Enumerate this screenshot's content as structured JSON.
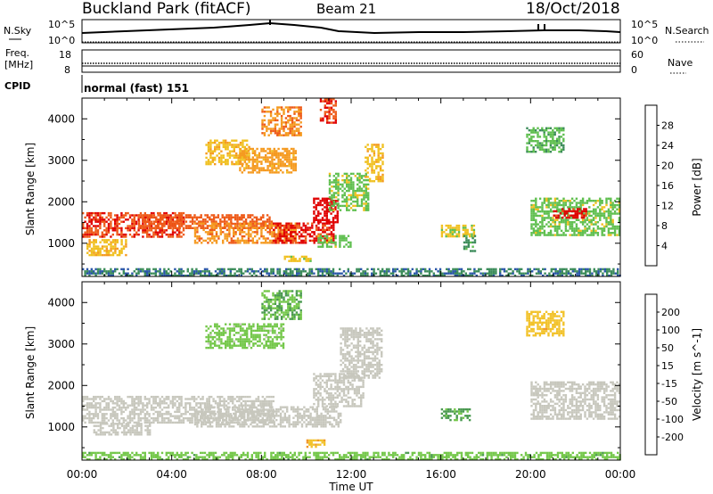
{
  "header": {
    "station": "Buckland Park (fitACF)",
    "beam": "Beam 21",
    "date": "18/Oct/2018"
  },
  "noise_panel": {
    "left_label": "N.Sky",
    "right_label": "N.Search",
    "left_ticks": [
      "10^5",
      "10^0"
    ],
    "right_ticks": [
      "10^5",
      "10^0"
    ]
  },
  "freq_panel": {
    "left_label_1": "Freq.",
    "left_label_2": "[MHz]",
    "left_ticks": [
      "18",
      "8"
    ],
    "right_label": "Nave",
    "right_ticks": [
      "60",
      "0"
    ]
  },
  "cpid_panel": {
    "label": "CPID",
    "text": "normal (fast) 151"
  },
  "power_panel": {
    "ylabel": "Slant Range [km]",
    "yticks": [
      "4000",
      "3000",
      "2000",
      "1000"
    ],
    "colorbar_label": "Power [dB]",
    "colorbar_ticks": [
      "28",
      "24",
      "20",
      "16",
      "12",
      "8",
      "4"
    ]
  },
  "velocity_panel": {
    "ylabel": "Slant Range [km]",
    "yticks": [
      "4000",
      "3000",
      "2000",
      "1000"
    ],
    "colorbar_label": "Velocity [m s^-1]",
    "colorbar_ticks": [
      "200",
      "100",
      "50",
      "15",
      "-15",
      "-50",
      "-100",
      "-200"
    ]
  },
  "x_axis": {
    "ticks": [
      "00:00",
      "04:00",
      "08:00",
      "12:00",
      "16:00",
      "20:00",
      "00:00"
    ],
    "label": "Time UT"
  },
  "colors": {
    "power_scale": [
      "#0a20e0",
      "#2a56a8",
      "#3c8c5a",
      "#5fbf4f",
      "#f0c020",
      "#f59a20",
      "#ee5a18",
      "#e00000"
    ],
    "velocity_scale": [
      "#1430d0",
      "#2f5fa8",
      "#4a9950",
      "#74c74a",
      "#c7c7bd",
      "#f2c22a",
      "#f19528",
      "#ea5a1b",
      "#e00000"
    ]
  },
  "chart_data": [
    {
      "type": "heatmap",
      "panel": "Power",
      "x_unit": "Time UT (hours)",
      "xlim": [
        0,
        24
      ],
      "y_unit": "Slant Range (km)",
      "ylim": [
        200,
        4500
      ],
      "value_range": [
        0,
        30
      ],
      "value_unit": "dB",
      "regions": [
        {
          "t0": 0.0,
          "t1": 4.5,
          "r0": 1150,
          "r1": 1750,
          "value": 26
        },
        {
          "t0": 0.2,
          "t1": 2.0,
          "r0": 700,
          "r1": 1100,
          "value": 18
        },
        {
          "t0": 2.5,
          "t1": 8.5,
          "r0": 1350,
          "r1": 1700,
          "value": 24
        },
        {
          "t0": 5.0,
          "t1": 9.5,
          "r0": 1000,
          "r1": 1500,
          "value": 22
        },
        {
          "t0": 8.5,
          "t1": 11.2,
          "r0": 1000,
          "r1": 1500,
          "value": 27
        },
        {
          "t0": 10.3,
          "t1": 11.4,
          "r0": 1500,
          "r1": 2100,
          "value": 28
        },
        {
          "t0": 11.0,
          "t1": 12.8,
          "r0": 1800,
          "r1": 2700,
          "value": 14
        },
        {
          "t0": 12.6,
          "t1": 13.4,
          "r0": 2500,
          "r1": 3400,
          "value": 18
        },
        {
          "t0": 5.5,
          "t1": 7.5,
          "r0": 2900,
          "r1": 3500,
          "value": 18
        },
        {
          "t0": 7.0,
          "t1": 9.5,
          "r0": 2700,
          "r1": 3300,
          "value": 20
        },
        {
          "t0": 8.0,
          "t1": 9.8,
          "r0": 3600,
          "r1": 4300,
          "value": 22
        },
        {
          "t0": 10.6,
          "t1": 11.3,
          "r0": 3900,
          "r1": 4500,
          "value": 26
        },
        {
          "t0": 10.5,
          "t1": 12.0,
          "r0": 900,
          "r1": 1200,
          "value": 14
        },
        {
          "t0": 9.0,
          "t1": 10.2,
          "r0": 550,
          "r1": 700,
          "value": 16
        },
        {
          "t0": 16.0,
          "t1": 17.5,
          "r0": 1150,
          "r1": 1450,
          "value": 16
        },
        {
          "t0": 17.0,
          "t1": 17.5,
          "r0": 800,
          "r1": 1200,
          "value": 10
        },
        {
          "t0": 20.0,
          "t1": 24.0,
          "r0": 1200,
          "r1": 2100,
          "value": 14
        },
        {
          "t0": 21.0,
          "t1": 22.5,
          "r0": 1600,
          "r1": 1850,
          "value": 27
        },
        {
          "t0": 19.8,
          "t1": 21.5,
          "r0": 3200,
          "r1": 3800,
          "value": 12
        },
        {
          "t0": 0.0,
          "t1": 24.0,
          "r0": 200,
          "r1": 400,
          "value": 8
        }
      ]
    },
    {
      "type": "heatmap",
      "panel": "Velocity",
      "x_unit": "Time UT (hours)",
      "xlim": [
        0,
        24
      ],
      "y_unit": "Slant Range (km)",
      "ylim": [
        200,
        4500
      ],
      "value_range": [
        -250,
        250
      ],
      "value_unit": "m s^-1",
      "regions": [
        {
          "t0": 0.0,
          "t1": 8.5,
          "r0": 1100,
          "r1": 1750,
          "value": 0
        },
        {
          "t0": 0.5,
          "t1": 3.0,
          "r0": 800,
          "r1": 1100,
          "value": 0
        },
        {
          "t0": 5.0,
          "t1": 11.5,
          "r0": 1000,
          "r1": 1500,
          "value": 0
        },
        {
          "t0": 10.3,
          "t1": 12.5,
          "r0": 1500,
          "r1": 2300,
          "value": 0
        },
        {
          "t0": 11.5,
          "t1": 13.4,
          "r0": 2200,
          "r1": 3400,
          "value": 0
        },
        {
          "t0": 5.5,
          "t1": 9.0,
          "r0": 2900,
          "r1": 3500,
          "value": -50
        },
        {
          "t0": 8.0,
          "t1": 9.8,
          "r0": 3600,
          "r1": 4300,
          "value": -80
        },
        {
          "t0": 16.0,
          "t1": 17.3,
          "r0": 1150,
          "r1": 1450,
          "value": -100
        },
        {
          "t0": 10.0,
          "t1": 10.8,
          "r0": 500,
          "r1": 700,
          "value": 80
        },
        {
          "t0": 20.0,
          "t1": 24.0,
          "r0": 1200,
          "r1": 2100,
          "value": 0
        },
        {
          "t0": 19.8,
          "t1": 21.5,
          "r0": 3200,
          "r1": 3800,
          "value": 60
        },
        {
          "t0": 0.0,
          "t1": 24.0,
          "r0": 200,
          "r1": 400,
          "value": -60
        }
      ]
    }
  ]
}
